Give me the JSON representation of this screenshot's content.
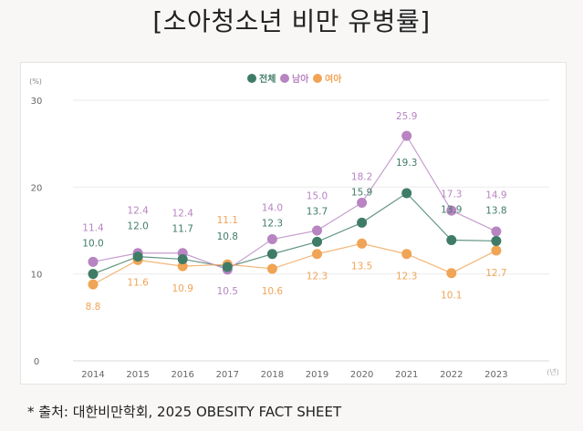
{
  "title": "[소아청소년 비만 유병률]",
  "footnote": "* 출처: 대한비만학회,  2025 OBESITY FACT SHEET",
  "chart_data": {
    "type": "line",
    "ylabel": "(%)",
    "xlabel": "(년)",
    "ylim": [
      0,
      30
    ],
    "yticks": [
      0,
      10,
      20,
      30
    ],
    "grid": true,
    "legend": "top-center",
    "categories": [
      "2014",
      "2015",
      "2016",
      "2017",
      "2018",
      "2019",
      "2020",
      "2021",
      "2022",
      "2023"
    ],
    "series": [
      {
        "name": "전체",
        "color": "#3f7c67",
        "values": [
          10.0,
          12.0,
          11.7,
          10.8,
          12.3,
          13.7,
          15.9,
          19.3,
          13.9,
          13.8
        ]
      },
      {
        "name": "남아",
        "color": "#b884c2",
        "values": [
          11.4,
          12.4,
          12.4,
          10.5,
          14.0,
          15.0,
          18.2,
          25.9,
          17.3,
          14.9
        ]
      },
      {
        "name": "여아",
        "color": "#f0a456",
        "values": [
          8.8,
          11.6,
          10.9,
          11.1,
          10.6,
          12.3,
          13.5,
          12.3,
          10.1,
          12.7
        ]
      }
    ]
  }
}
